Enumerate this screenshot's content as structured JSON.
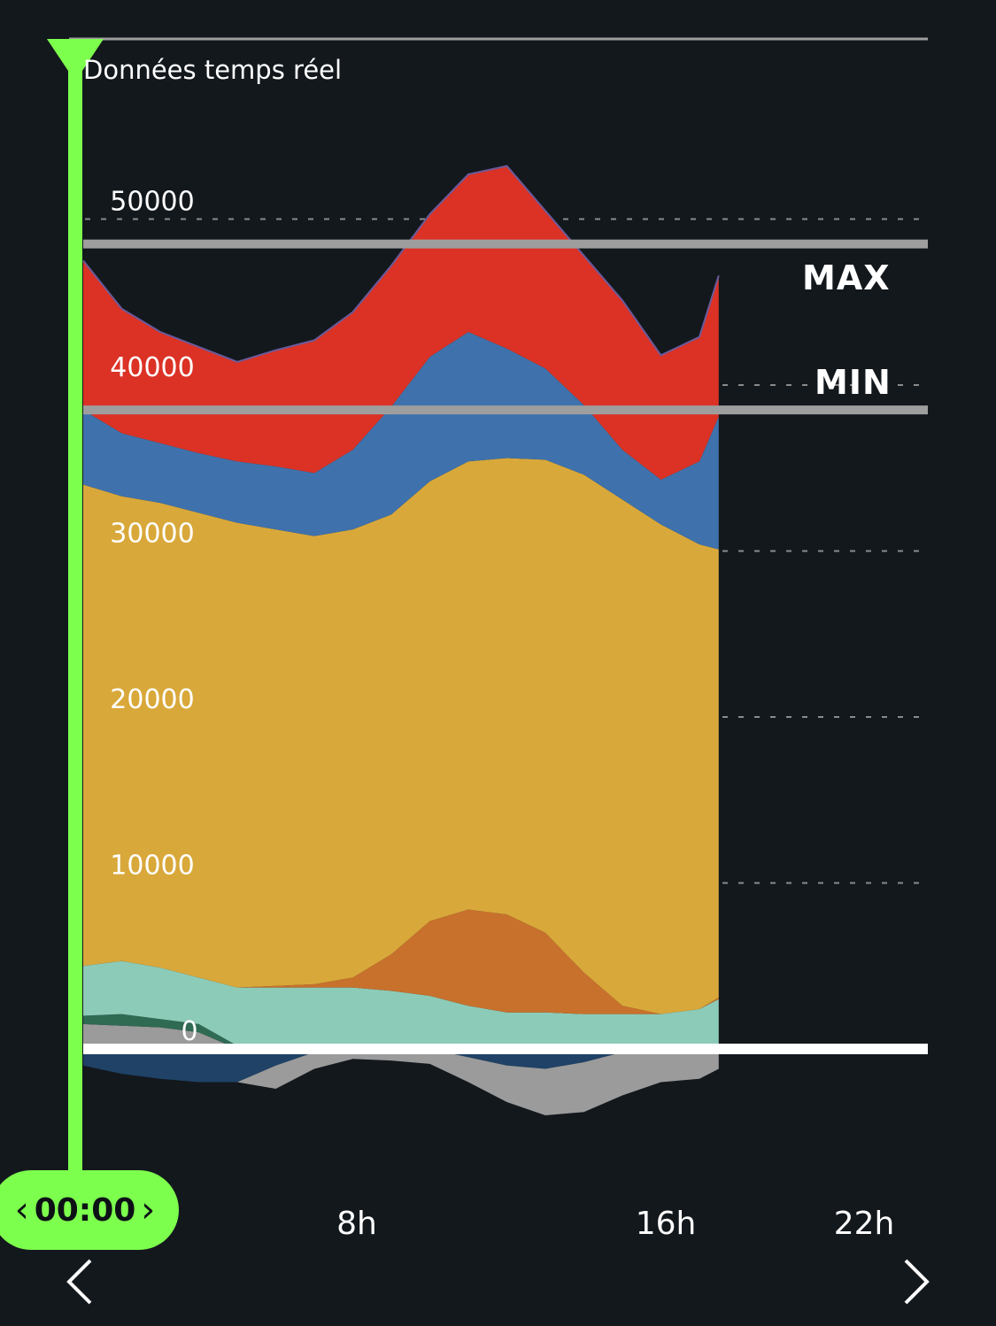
{
  "header": {
    "title": "Données temps réel"
  },
  "time_cursor": {
    "value": "00:00",
    "prev_glyph": "‹",
    "next_glyph": "›"
  },
  "reference_lines": {
    "max_label": "MAX",
    "min_label": "MIN",
    "max_value": 48500,
    "min_value": 38500,
    "color": "#9e9e9e"
  },
  "navigation": {
    "prev": "chevron-left",
    "next": "chevron-right"
  },
  "colors": {
    "background": "#13181d",
    "accent": "#7dff4d",
    "grid": "#8a8a8a"
  },
  "chart_data": {
    "type": "area",
    "title": "Données temps réel",
    "xlabel": "",
    "ylabel": "",
    "x_ticks": [
      "8h",
      "16h",
      "22h"
    ],
    "y_ticks": [
      0,
      10000,
      20000,
      30000,
      40000,
      50000
    ],
    "xlim": [
      0,
      23.5
    ],
    "ylim": [
      -4000,
      54000
    ],
    "grid": true,
    "x": [
      0,
      1,
      2,
      3,
      4,
      5,
      6,
      7,
      8,
      9,
      10,
      11,
      12,
      13,
      14,
      15,
      16,
      16.5
    ],
    "series": [
      {
        "color": "#9b9b9b",
        "values": [
          1500,
          1400,
          1300,
          1000,
          0,
          0,
          0,
          0,
          0,
          0,
          0,
          0,
          0,
          0,
          0,
          0,
          0,
          0
        ]
      },
      {
        "color": "#2f6a53",
        "values": [
          500,
          700,
          500,
          500,
          200,
          200,
          200,
          200,
          200,
          200,
          200,
          200,
          200,
          200,
          200,
          200,
          200,
          200
        ]
      },
      {
        "color": "#8ccbb8",
        "values": [
          3000,
          3200,
          3100,
          2800,
          3500,
          3500,
          3500,
          3500,
          3300,
          3000,
          2400,
          2000,
          2000,
          1900,
          1900,
          1900,
          2200,
          2800
        ]
      },
      {
        "color": "#c8712c",
        "values": [
          0,
          0,
          0,
          0,
          0,
          100,
          200,
          600,
          2200,
          4500,
          5800,
          5900,
          4800,
          2500,
          500,
          0,
          0,
          100
        ]
      },
      {
        "color": "#d9a83a",
        "values": [
          29000,
          28000,
          28000,
          28000,
          28000,
          27500,
          27000,
          27000,
          26500,
          26500,
          27000,
          27500,
          28500,
          30000,
          30500,
          29500,
          28000,
          27000
        ]
      },
      {
        "color": "#3f72ac",
        "values": [
          4500,
          3800,
          3600,
          3600,
          3700,
          3800,
          3800,
          4800,
          6500,
          7500,
          7800,
          6600,
          5500,
          4200,
          3000,
          2700,
          5000,
          8000
        ]
      },
      {
        "color": "#db3225",
        "values": [
          9000,
          7500,
          6700,
          6400,
          6000,
          7000,
          8000,
          8300,
          8500,
          8600,
          9500,
          11000,
          9500,
          9000,
          9000,
          7500,
          7500,
          8500
        ]
      },
      {
        "color": "#1f4266",
        "values": [
          -1000,
          -1500,
          -1800,
          -2000,
          -2000,
          -1000,
          -200,
          0,
          0,
          0,
          -500,
          -1000,
          -1200,
          -800,
          -200,
          0,
          0,
          0
        ]
      },
      {
        "color": "#9b9b9b",
        "values": [
          0,
          0,
          0,
          0,
          0,
          -1400,
          -1000,
          -600,
          -700,
          -900,
          -1500,
          -2200,
          -2800,
          -3000,
          -2600,
          -2000,
          -1800,
          -1200
        ]
      }
    ]
  }
}
